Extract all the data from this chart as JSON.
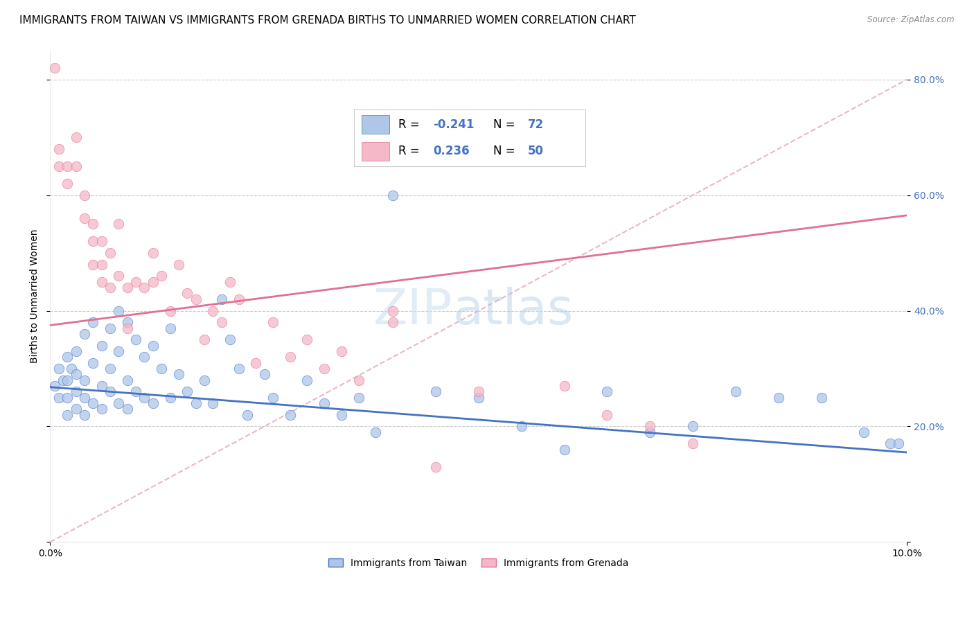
{
  "title": "IMMIGRANTS FROM TAIWAN VS IMMIGRANTS FROM GRENADA BIRTHS TO UNMARRIED WOMEN CORRELATION CHART",
  "source": "Source: ZipAtlas.com",
  "ylabel": "Births to Unmarried Women",
  "xmin": 0.0,
  "xmax": 0.1,
  "ymin": 0.0,
  "ymax": 0.85,
  "taiwan_color": "#aec6e8",
  "taiwan_color_dark": "#4472c4",
  "grenada_color": "#f4b8c8",
  "grenada_color_dark": "#e07090",
  "taiwan_R": -0.241,
  "taiwan_N": 72,
  "grenada_R": 0.236,
  "grenada_N": 50,
  "taiwan_scatter_x": [
    0.0005,
    0.001,
    0.001,
    0.0015,
    0.002,
    0.002,
    0.002,
    0.002,
    0.0025,
    0.003,
    0.003,
    0.003,
    0.003,
    0.004,
    0.004,
    0.004,
    0.004,
    0.005,
    0.005,
    0.005,
    0.006,
    0.006,
    0.006,
    0.007,
    0.007,
    0.007,
    0.008,
    0.008,
    0.008,
    0.009,
    0.009,
    0.009,
    0.01,
    0.01,
    0.011,
    0.011,
    0.012,
    0.012,
    0.013,
    0.014,
    0.014,
    0.015,
    0.016,
    0.017,
    0.018,
    0.019,
    0.02,
    0.021,
    0.022,
    0.023,
    0.025,
    0.026,
    0.028,
    0.03,
    0.032,
    0.034,
    0.036,
    0.038,
    0.04,
    0.045,
    0.05,
    0.055,
    0.06,
    0.065,
    0.07,
    0.075,
    0.08,
    0.085,
    0.09,
    0.095,
    0.098,
    0.099
  ],
  "taiwan_scatter_y": [
    0.27,
    0.3,
    0.25,
    0.28,
    0.32,
    0.28,
    0.25,
    0.22,
    0.3,
    0.33,
    0.29,
    0.26,
    0.23,
    0.36,
    0.28,
    0.25,
    0.22,
    0.38,
    0.31,
    0.24,
    0.34,
    0.27,
    0.23,
    0.37,
    0.3,
    0.26,
    0.4,
    0.33,
    0.24,
    0.38,
    0.28,
    0.23,
    0.35,
    0.26,
    0.32,
    0.25,
    0.34,
    0.24,
    0.3,
    0.37,
    0.25,
    0.29,
    0.26,
    0.24,
    0.28,
    0.24,
    0.42,
    0.35,
    0.3,
    0.22,
    0.29,
    0.25,
    0.22,
    0.28,
    0.24,
    0.22,
    0.25,
    0.19,
    0.6,
    0.26,
    0.25,
    0.2,
    0.16,
    0.26,
    0.19,
    0.2,
    0.26,
    0.25,
    0.25,
    0.19,
    0.17,
    0.17
  ],
  "grenada_scatter_x": [
    0.0005,
    0.001,
    0.001,
    0.002,
    0.002,
    0.003,
    0.003,
    0.004,
    0.004,
    0.005,
    0.005,
    0.005,
    0.006,
    0.006,
    0.006,
    0.007,
    0.007,
    0.008,
    0.008,
    0.009,
    0.009,
    0.01,
    0.011,
    0.012,
    0.012,
    0.013,
    0.014,
    0.015,
    0.016,
    0.017,
    0.018,
    0.019,
    0.02,
    0.021,
    0.022,
    0.024,
    0.026,
    0.028,
    0.03,
    0.032,
    0.034,
    0.036,
    0.04,
    0.04,
    0.045,
    0.05,
    0.06,
    0.065,
    0.07,
    0.075
  ],
  "grenada_scatter_y": [
    0.82,
    0.68,
    0.65,
    0.65,
    0.62,
    0.7,
    0.65,
    0.6,
    0.56,
    0.55,
    0.52,
    0.48,
    0.52,
    0.48,
    0.45,
    0.5,
    0.44,
    0.55,
    0.46,
    0.44,
    0.37,
    0.45,
    0.44,
    0.5,
    0.45,
    0.46,
    0.4,
    0.48,
    0.43,
    0.42,
    0.35,
    0.4,
    0.38,
    0.45,
    0.42,
    0.31,
    0.38,
    0.32,
    0.35,
    0.3,
    0.33,
    0.28,
    0.4,
    0.38,
    0.13,
    0.26,
    0.27,
    0.22,
    0.2,
    0.17
  ],
  "taiwan_trend_x": [
    0.0,
    0.1
  ],
  "taiwan_trend_y": [
    0.268,
    0.155
  ],
  "grenada_trend_x": [
    0.0,
    0.1
  ],
  "grenada_trend_y": [
    0.375,
    0.565
  ],
  "dashed_line_x": [
    0.0,
    0.1
  ],
  "dashed_line_y": [
    0.0,
    0.8
  ],
  "dashed_color": "#e8b0c0",
  "background_color": "#ffffff",
  "grid_color": "#cccccc",
  "title_fontsize": 11,
  "axis_label_fontsize": 10,
  "tick_fontsize": 10,
  "legend_fontsize": 12,
  "ytick_vals": [
    0.0,
    0.2,
    0.4,
    0.6,
    0.8
  ],
  "ytick_labels": [
    "",
    "20.0%",
    "40.0%",
    "60.0%",
    "80.0%"
  ],
  "watermark_zip": "ZIP",
  "watermark_atlas": "atlas",
  "legend_taiwan_label": "Immigrants from Taiwan",
  "legend_grenada_label": "Immigrants from Grenada"
}
